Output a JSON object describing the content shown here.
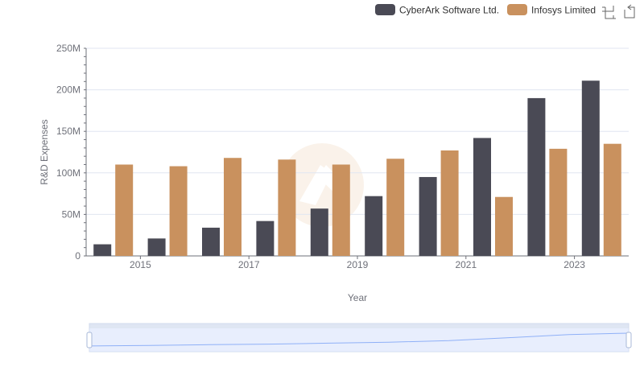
{
  "chart_data": {
    "type": "bar",
    "title": "",
    "xlabel": "Year",
    "ylabel": "R&D Expenses",
    "ylim": [
      0,
      250000000
    ],
    "y_ticks": [
      {
        "value": 0,
        "label": "0"
      },
      {
        "value": 50000000,
        "label": "50M"
      },
      {
        "value": 100000000,
        "label": "100M"
      },
      {
        "value": 150000000,
        "label": "150M"
      },
      {
        "value": 200000000,
        "label": "200M"
      },
      {
        "value": 250000000,
        "label": "250M"
      }
    ],
    "categories": [
      "2014",
      "2015",
      "2016",
      "2017",
      "2018",
      "2019",
      "2020",
      "2021",
      "2022",
      "2023"
    ],
    "x_tick_labels": [
      "2015",
      "2017",
      "2019",
      "2021",
      "2023"
    ],
    "series": [
      {
        "name": "CyberArk Software Ltd.",
        "color": "#4a4a55",
        "values": [
          14000000,
          21000000,
          34000000,
          42000000,
          57000000,
          72000000,
          95000000,
          142000000,
          190000000,
          211000000
        ]
      },
      {
        "name": "Infosys Limited",
        "color": "#c9915e",
        "values": [
          110000000,
          108000000,
          118000000,
          116000000,
          110000000,
          117000000,
          127000000,
          71000000,
          129000000,
          135000000
        ]
      }
    ],
    "legend": "top-right",
    "grid": true
  },
  "colors": {
    "grid": "#e0e6f1",
    "axis": "#6e7079",
    "zoom_fill": "#d9e3fc",
    "zoom_border": "#d2dbee",
    "zoom_line": "#8fb0f7",
    "watermark": "#f7ebdd"
  },
  "toolbox": {
    "zoom_icon": "zoom-icon",
    "reset_icon": "restore-icon"
  }
}
